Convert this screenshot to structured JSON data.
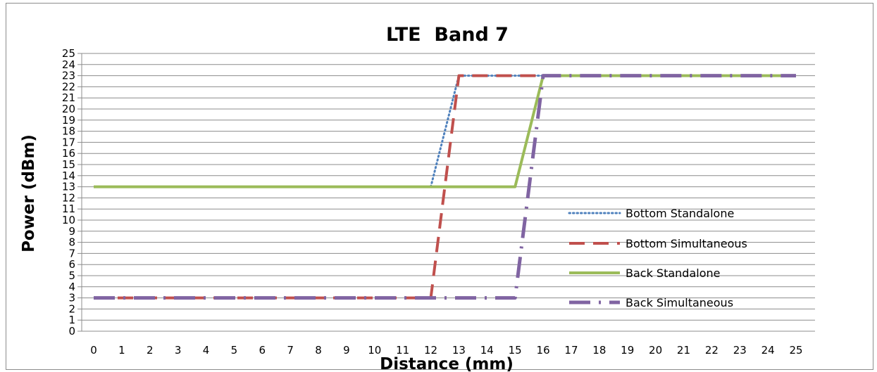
{
  "chart_data": {
    "type": "line",
    "title": "LTE  Band 7",
    "xlabel": "Distance (mm)",
    "ylabel": "Power (dBm)",
    "xlim": [
      0,
      25
    ],
    "ylim": [
      0,
      25
    ],
    "x_ticks": [
      0,
      1,
      2,
      3,
      4,
      5,
      6,
      7,
      8,
      9,
      10,
      11,
      12,
      13,
      14,
      15,
      16,
      17,
      18,
      19,
      20,
      21,
      22,
      23,
      24,
      25
    ],
    "y_ticks": [
      0,
      1,
      2,
      3,
      4,
      5,
      6,
      7,
      8,
      9,
      10,
      11,
      12,
      13,
      14,
      15,
      16,
      17,
      18,
      19,
      20,
      21,
      22,
      23,
      24,
      25
    ],
    "grid": "horizontal",
    "legend_position": "right",
    "series": [
      {
        "name": "Bottom Standalone",
        "color": "#4f81bd",
        "style": "dotted",
        "x": [
          12,
          13,
          14,
          15,
          16
        ],
        "y": [
          13,
          23,
          23,
          23,
          23
        ]
      },
      {
        "name": "Bottom Simultaneous",
        "color": "#c0504d",
        "style": "dashed",
        "x": [
          0,
          1,
          2,
          3,
          4,
          5,
          6,
          7,
          8,
          9,
          10,
          11,
          12,
          13,
          14,
          15,
          16
        ],
        "y": [
          3,
          3,
          3,
          3,
          3,
          3,
          3,
          3,
          3,
          3,
          3,
          3,
          3,
          23,
          23,
          23,
          23
        ]
      },
      {
        "name": "Back Standalone",
        "color": "#9bbb59",
        "style": "solid",
        "x": [
          0,
          1,
          2,
          3,
          4,
          5,
          6,
          7,
          8,
          9,
          10,
          11,
          12,
          13,
          14,
          15,
          16,
          17,
          18,
          19,
          20,
          21,
          22,
          23,
          24,
          25
        ],
        "y": [
          13,
          13,
          13,
          13,
          13,
          13,
          13,
          13,
          13,
          13,
          13,
          13,
          13,
          13,
          13,
          13,
          23,
          23,
          23,
          23,
          23,
          23,
          23,
          23,
          23,
          23
        ]
      },
      {
        "name": "Back Simultaneous",
        "color": "#8064a2",
        "style": "dashdot",
        "x": [
          0,
          1,
          2,
          3,
          4,
          5,
          6,
          7,
          8,
          9,
          10,
          11,
          12,
          13,
          14,
          15,
          16,
          17,
          18,
          19,
          20,
          21,
          22,
          23,
          24,
          25
        ],
        "y": [
          3,
          3,
          3,
          3,
          3,
          3,
          3,
          3,
          3,
          3,
          3,
          3,
          3,
          3,
          3,
          3,
          23,
          23,
          23,
          23,
          23,
          23,
          23,
          23,
          23,
          23
        ]
      }
    ]
  }
}
